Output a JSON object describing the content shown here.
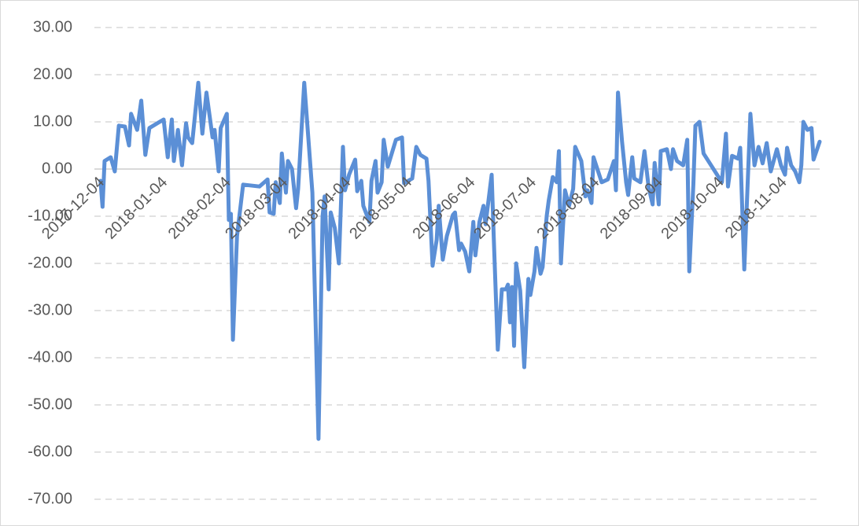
{
  "chart_data": {
    "type": "line",
    "xlim": [
      "2017-12-01",
      "2018-11-22"
    ],
    "xticks": [
      "2017-12-04",
      "2018-01-04",
      "2018-02-04",
      "2018-03-04",
      "2018-04-04",
      "2018-05-04",
      "2018-06-04",
      "2018-07-04",
      "2018-08-04",
      "2018-09-04",
      "2018-10-04",
      "2018-11-04"
    ],
    "ylim": [
      -70,
      30
    ],
    "yticks": [
      {
        "value": 30,
        "label": "30.00"
      },
      {
        "value": 20,
        "label": "20.00"
      },
      {
        "value": 10,
        "label": "10.00"
      },
      {
        "value": 0,
        "label": "0.00"
      },
      {
        "value": -10,
        "label": "-10.00"
      },
      {
        "value": -20,
        "label": "-20.00"
      },
      {
        "value": -30,
        "label": "-30.00"
      },
      {
        "value": -40,
        "label": "-40.00"
      },
      {
        "value": -50,
        "label": "-50.00"
      },
      {
        "value": -60,
        "label": "-60.00"
      },
      {
        "value": -70,
        "label": "-70.00"
      }
    ],
    "grid": true,
    "x": [
      "2017-12-04",
      "2017-12-05",
      "2017-12-06",
      "2017-12-09",
      "2017-12-11",
      "2017-12-13",
      "2017-12-16",
      "2017-12-18",
      "2017-12-19",
      "2017-12-22",
      "2017-12-24",
      "2017-12-26",
      "2017-12-28",
      "2018-01-02",
      "2018-01-04",
      "2018-01-06",
      "2018-01-08",
      "2018-01-09",
      "2018-01-11",
      "2018-01-13",
      "2018-01-15",
      "2018-01-16",
      "2018-01-18",
      "2018-01-21",
      "2018-01-23",
      "2018-01-25",
      "2018-01-28",
      "2018-01-29",
      "2018-01-31",
      "2018-02-01",
      "2018-02-04",
      "2018-02-05",
      "2018-02-06",
      "2018-02-07",
      "2018-02-09",
      "2018-02-12",
      "2018-02-20",
      "2018-02-24",
      "2018-02-25",
      "2018-02-27",
      "2018-02-28",
      "2018-03-02",
      "2018-03-03",
      "2018-03-05",
      "2018-03-06",
      "2018-03-08",
      "2018-03-10",
      "2018-03-11",
      "2018-03-14",
      "2018-03-17",
      "2018-03-18",
      "2018-03-21",
      "2018-03-23",
      "2018-03-24",
      "2018-03-26",
      "2018-03-27",
      "2018-03-29",
      "2018-03-31",
      "2018-04-02",
      "2018-04-03",
      "2018-04-05",
      "2018-04-08",
      "2018-04-09",
      "2018-04-11",
      "2018-04-12",
      "2018-04-15",
      "2018-04-16",
      "2018-04-18",
      "2018-04-19",
      "2018-04-21",
      "2018-04-22",
      "2018-04-24",
      "2018-04-28",
      "2018-05-01",
      "2018-05-02",
      "2018-05-06",
      "2018-05-08",
      "2018-05-10",
      "2018-05-13",
      "2018-05-14",
      "2018-05-16",
      "2018-05-18",
      "2018-05-19",
      "2018-05-21",
      "2018-05-23",
      "2018-05-26",
      "2018-05-27",
      "2018-05-29",
      "2018-05-30",
      "2018-06-01",
      "2018-06-03",
      "2018-06-05",
      "2018-06-06",
      "2018-06-08",
      "2018-06-10",
      "2018-06-11",
      "2018-06-14",
      "2018-06-15",
      "2018-06-17",
      "2018-06-19",
      "2018-06-21",
      "2018-06-22",
      "2018-06-23",
      "2018-06-24",
      "2018-06-25",
      "2018-06-26",
      "2018-06-28",
      "2018-06-30",
      "2018-07-02",
      "2018-07-03",
      "2018-07-05",
      "2018-07-06",
      "2018-07-08",
      "2018-07-09",
      "2018-07-11",
      "2018-07-12",
      "2018-07-14",
      "2018-07-16",
      "2018-07-17",
      "2018-07-18",
      "2018-07-20",
      "2018-07-22",
      "2018-07-24",
      "2018-07-25",
      "2018-07-28",
      "2018-07-30",
      "2018-07-31",
      "2018-08-02",
      "2018-08-03",
      "2018-08-07",
      "2018-08-10",
      "2018-08-13",
      "2018-08-14",
      "2018-08-15",
      "2018-08-17",
      "2018-08-19",
      "2018-08-20",
      "2018-08-22",
      "2018-08-23",
      "2018-08-26",
      "2018-08-28",
      "2018-08-30",
      "2018-09-01",
      "2018-09-02",
      "2018-09-04",
      "2018-09-05",
      "2018-09-08",
      "2018-09-10",
      "2018-09-11",
      "2018-09-13",
      "2018-09-16",
      "2018-09-18",
      "2018-09-19",
      "2018-09-21",
      "2018-09-22",
      "2018-09-24",
      "2018-09-26",
      "2018-10-05",
      "2018-10-07",
      "2018-10-08",
      "2018-10-10",
      "2018-10-13",
      "2018-10-14",
      "2018-10-16",
      "2018-10-19",
      "2018-10-21",
      "2018-10-23",
      "2018-10-25",
      "2018-10-27",
      "2018-10-29",
      "2018-11-01",
      "2018-11-03",
      "2018-11-05",
      "2018-11-06",
      "2018-11-08",
      "2018-11-10",
      "2018-11-12",
      "2018-11-13",
      "2018-11-14",
      "2018-11-16",
      "2018-11-18",
      "2018-11-19",
      "2018-11-22"
    ],
    "series": [
      {
        "color": "#5b8fd6",
        "values": [
          -2.5,
          -8,
          1.7,
          2.5,
          -0.5,
          9.2,
          9,
          5,
          11.7,
          8.3,
          14.5,
          3,
          8.7,
          10,
          10.5,
          2.5,
          10.5,
          1.7,
          8.3,
          0.8,
          9.7,
          6.7,
          5.5,
          18.3,
          7.5,
          16.2,
          6.7,
          8.3,
          -0.5,
          8.7,
          11.7,
          -10.8,
          -9.5,
          -36.2,
          -14.2,
          -3.3,
          -3.7,
          -2.2,
          -9.2,
          -9.5,
          -2.8,
          -7.2,
          3.3,
          -5,
          1.7,
          0,
          -8.3,
          -4.2,
          18.3,
          0.8,
          -5,
          -57.2,
          -10,
          -5.8,
          -25.5,
          -9.2,
          -12.5,
          -20,
          4.7,
          -4.5,
          -1.2,
          2,
          -4.7,
          -2.5,
          -7.8,
          -11.2,
          -2.5,
          1.7,
          -5,
          -2.8,
          6.2,
          0.5,
          6.2,
          6.7,
          -3,
          -2,
          4.7,
          3,
          2.2,
          -2.5,
          -20.5,
          -15,
          -7.8,
          -19.2,
          -14.2,
          -9.7,
          -9.2,
          -17.2,
          -15.8,
          -17.5,
          -21.7,
          -11.2,
          -18.3,
          -11.2,
          -7.8,
          -11.7,
          -1.2,
          -14.2,
          -38.3,
          -25.5,
          -25.5,
          -24.5,
          -32.5,
          -25,
          -37.5,
          -20,
          -25.8,
          -42,
          -23.3,
          -26.7,
          -21.7,
          -16.7,
          -22.2,
          -20.8,
          -10,
          -6.7,
          -1.7,
          -2.8,
          3.8,
          -20,
          -4.5,
          -7.8,
          -4.2,
          4.7,
          1.7,
          -5.8,
          -4.5,
          -7.2,
          2.5,
          -2.8,
          -2.2,
          1.7,
          -4.5,
          16.2,
          5.8,
          -2.8,
          -5.5,
          2.5,
          -2,
          -2.8,
          3.8,
          -3.7,
          -7.5,
          1.3,
          -7.5,
          3.8,
          4.2,
          0,
          4.2,
          1.7,
          0.8,
          6.2,
          -21.7,
          -3.3,
          9.2,
          10,
          3.3,
          -2.8,
          7.5,
          -3.7,
          2.8,
          2.2,
          4.5,
          -21.3,
          11.7,
          0.8,
          4.7,
          1.2,
          5.5,
          -0.5,
          4.2,
          0.8,
          -1.2,
          4.5,
          0.8,
          -0.5,
          -2.8,
          0.8,
          10,
          8.3,
          8.7,
          2,
          5.8
        ]
      }
    ]
  }
}
